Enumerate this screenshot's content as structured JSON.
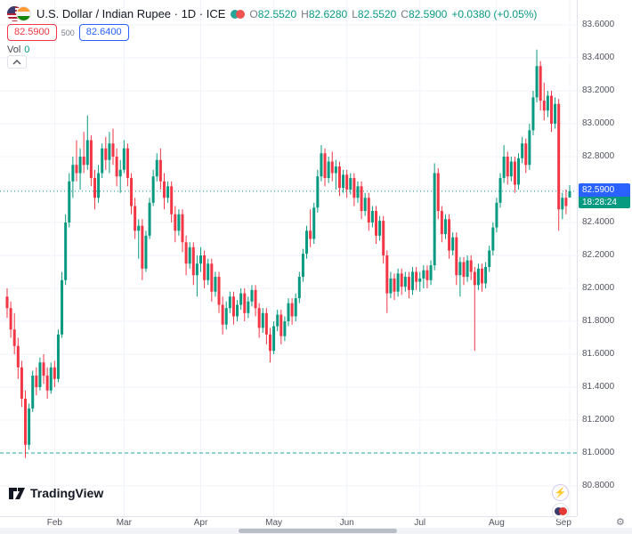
{
  "header": {
    "symbol_title": "U.S. Dollar / Indian Rupee · 1D · ICE",
    "ohlc": {
      "o_label": "O",
      "o": "82.5520",
      "h_label": "H",
      "h": "82.6280",
      "l_label": "L",
      "l": "82.5520",
      "c_label": "C",
      "c": "82.5900",
      "change": "+0.0380 (+0.05%)"
    },
    "sell_price": "82.5900",
    "spread": "500",
    "buy_price": "82.6400",
    "vol_label": "Vol",
    "vol_value": "0"
  },
  "price_label": {
    "price": "82.5900",
    "countdown": "18:28:24"
  },
  "footer": {
    "logo_text": "TradingView"
  },
  "icons": {
    "collapse": "chevron-up",
    "boost": "⚡",
    "settings": "⚙"
  },
  "colors": {
    "up": "#089981",
    "down": "#f23645",
    "grid": "#f0f3fa",
    "accent_blue": "#2962ff",
    "sell_red": "#f23645",
    "countdown_teal": "#089981",
    "axis_text": "#50535e"
  },
  "chart_data": {
    "type": "candlestick",
    "title": "U.S. Dollar / Indian Rupee",
    "interval": "1D",
    "exchange": "ICE",
    "last_price": 82.59,
    "change": 0.038,
    "change_pct": "+0.05%",
    "ylim": [
      80.7,
      83.65
    ],
    "grid": true,
    "up_color": "#089981",
    "down_color": "#f23645",
    "y_ticks": [
      "83.6000",
      "83.4000",
      "83.2000",
      "83.0000",
      "82.8000",
      "82.6000",
      "82.4000",
      "82.2000",
      "82.0000",
      "81.8000",
      "81.6000",
      "81.4000",
      "81.2000",
      "81.0000",
      "80.8000"
    ],
    "x_ticks": [
      {
        "label": "Feb",
        "index": 13
      },
      {
        "label": "Mar",
        "index": 32
      },
      {
        "label": "Apr",
        "index": 53
      },
      {
        "label": "May",
        "index": 73
      },
      {
        "label": "Jun",
        "index": 93
      },
      {
        "label": "Jul",
        "index": 113
      },
      {
        "label": "Aug",
        "index": 134
      },
      {
        "label": "Sep",
        "index": 154
      }
    ],
    "levels": [
      {
        "value": 82.59,
        "style": "dotted",
        "color": "#089981"
      },
      {
        "value": 81.0,
        "style": "dashed",
        "color": "#26a69a"
      }
    ],
    "candles": [
      [
        81.95,
        82.0,
        81.82,
        81.88
      ],
      [
        81.88,
        81.92,
        81.7,
        81.75
      ],
      [
        81.75,
        81.85,
        81.6,
        81.65
      ],
      [
        81.65,
        81.7,
        81.45,
        81.52
      ],
      [
        81.52,
        81.56,
        81.28,
        81.33
      ],
      [
        81.33,
        81.38,
        80.97,
        81.05
      ],
      [
        81.05,
        81.3,
        81.02,
        81.27
      ],
      [
        81.27,
        81.5,
        81.25,
        81.47
      ],
      [
        81.47,
        81.52,
        81.35,
        81.4
      ],
      [
        81.4,
        81.58,
        81.38,
        81.55
      ],
      [
        81.55,
        81.6,
        81.42,
        81.47
      ],
      [
        81.47,
        81.52,
        81.33,
        81.38
      ],
      [
        81.38,
        81.55,
        81.36,
        81.52
      ],
      [
        81.52,
        81.56,
        81.4,
        81.45
      ],
      [
        81.45,
        81.75,
        81.43,
        81.72
      ],
      [
        81.72,
        82.1,
        81.7,
        82.05
      ],
      [
        82.05,
        82.45,
        82.02,
        82.4
      ],
      [
        82.4,
        82.7,
        82.37,
        82.65
      ],
      [
        82.65,
        82.8,
        82.55,
        82.75
      ],
      [
        82.75,
        82.9,
        82.65,
        82.7
      ],
      [
        82.7,
        82.85,
        82.6,
        82.8
      ],
      [
        82.8,
        82.95,
        82.7,
        82.75
      ],
      [
        82.75,
        83.05,
        82.72,
        82.9
      ],
      [
        82.9,
        82.93,
        82.62,
        82.67
      ],
      [
        82.67,
        82.72,
        82.48,
        82.55
      ],
      [
        82.55,
        82.75,
        82.52,
        82.7
      ],
      [
        82.7,
        82.88,
        82.67,
        82.85
      ],
      [
        82.85,
        82.92,
        82.72,
        82.78
      ],
      [
        82.78,
        82.95,
        82.7,
        82.88
      ],
      [
        82.88,
        82.97,
        82.75,
        82.8
      ],
      [
        82.8,
        82.85,
        82.62,
        82.68
      ],
      [
        82.68,
        82.78,
        82.58,
        82.72
      ],
      [
        82.72,
        82.9,
        82.7,
        82.85
      ],
      [
        82.85,
        82.88,
        82.62,
        82.67
      ],
      [
        82.67,
        82.7,
        82.45,
        82.5
      ],
      [
        82.5,
        82.55,
        82.3,
        82.35
      ],
      [
        82.35,
        82.42,
        82.18,
        82.38
      ],
      [
        82.38,
        82.42,
        82.05,
        82.12
      ],
      [
        82.12,
        82.35,
        82.1,
        82.32
      ],
      [
        82.32,
        82.55,
        82.3,
        82.52
      ],
      [
        82.52,
        82.72,
        82.5,
        82.68
      ],
      [
        82.68,
        82.82,
        82.65,
        82.78
      ],
      [
        82.78,
        82.85,
        82.6,
        82.65
      ],
      [
        82.65,
        82.7,
        82.48,
        82.55
      ],
      [
        82.55,
        82.65,
        82.52,
        82.62
      ],
      [
        82.62,
        82.65,
        82.4,
        82.45
      ],
      [
        82.45,
        82.5,
        82.28,
        82.35
      ],
      [
        82.35,
        82.48,
        82.32,
        82.45
      ],
      [
        82.45,
        82.48,
        82.22,
        82.28
      ],
      [
        82.28,
        82.32,
        82.08,
        82.15
      ],
      [
        82.15,
        82.28,
        82.12,
        82.25
      ],
      [
        82.25,
        82.28,
        82.02,
        82.08
      ],
      [
        82.08,
        82.2,
        81.95,
        82.15
      ],
      [
        82.15,
        82.25,
        82.1,
        82.2
      ],
      [
        82.2,
        82.23,
        82.0,
        82.05
      ],
      [
        82.05,
        82.18,
        82.02,
        82.15
      ],
      [
        82.15,
        82.18,
        81.92,
        81.98
      ],
      [
        81.98,
        82.1,
        81.95,
        82.07
      ],
      [
        82.07,
        82.1,
        81.85,
        81.9
      ],
      [
        81.9,
        81.95,
        81.72,
        81.78
      ],
      [
        81.78,
        81.92,
        81.75,
        81.88
      ],
      [
        81.88,
        81.98,
        81.85,
        81.95
      ],
      [
        81.95,
        81.98,
        81.78,
        81.83
      ],
      [
        81.83,
        81.93,
        81.8,
        81.9
      ],
      [
        81.9,
        82.0,
        81.87,
        81.97
      ],
      [
        81.97,
        82.0,
        81.8,
        81.85
      ],
      [
        81.85,
        81.95,
        81.82,
        81.92
      ],
      [
        81.92,
        82.02,
        81.89,
        81.99
      ],
      [
        81.99,
        82.02,
        81.83,
        81.88
      ],
      [
        81.88,
        81.91,
        81.7,
        81.76
      ],
      [
        81.76,
        81.88,
        81.73,
        81.85
      ],
      [
        81.85,
        81.88,
        81.66,
        81.72
      ],
      [
        81.72,
        81.76,
        81.55,
        81.62
      ],
      [
        81.62,
        81.8,
        81.6,
        81.77
      ],
      [
        81.77,
        81.87,
        81.74,
        81.84
      ],
      [
        81.84,
        81.87,
        81.66,
        81.71
      ],
      [
        81.71,
        81.83,
        81.68,
        81.8
      ],
      [
        81.8,
        81.94,
        81.77,
        81.91
      ],
      [
        81.91,
        81.94,
        81.78,
        81.83
      ],
      [
        81.83,
        81.97,
        81.8,
        81.94
      ],
      [
        81.94,
        82.1,
        81.91,
        82.07
      ],
      [
        82.07,
        82.24,
        82.04,
        82.21
      ],
      [
        82.21,
        82.38,
        82.18,
        82.35
      ],
      [
        82.35,
        82.48,
        82.25,
        82.3
      ],
      [
        82.3,
        82.52,
        82.27,
        82.49
      ],
      [
        82.49,
        82.72,
        82.46,
        82.68
      ],
      [
        82.68,
        82.87,
        82.65,
        82.82
      ],
      [
        82.82,
        82.85,
        82.62,
        82.67
      ],
      [
        82.67,
        82.8,
        82.64,
        82.77
      ],
      [
        82.77,
        82.83,
        82.65,
        82.7
      ],
      [
        82.7,
        82.78,
        82.6,
        82.74
      ],
      [
        82.74,
        82.77,
        82.56,
        82.61
      ],
      [
        82.61,
        82.72,
        82.58,
        82.69
      ],
      [
        82.69,
        82.72,
        82.55,
        82.6
      ],
      [
        82.6,
        82.7,
        82.57,
        82.67
      ],
      [
        82.67,
        82.7,
        82.5,
        82.55
      ],
      [
        82.55,
        82.65,
        82.52,
        82.62
      ],
      [
        82.62,
        82.65,
        82.42,
        82.47
      ],
      [
        82.47,
        82.58,
        82.44,
        82.55
      ],
      [
        82.55,
        82.58,
        82.35,
        82.4
      ],
      [
        82.4,
        82.5,
        82.37,
        82.47
      ],
      [
        82.47,
        82.5,
        82.27,
        82.32
      ],
      [
        82.32,
        82.44,
        82.29,
        82.41
      ],
      [
        82.41,
        82.44,
        82.15,
        82.2
      ],
      [
        82.2,
        82.23,
        81.85,
        81.97
      ],
      [
        81.97,
        82.1,
        81.94,
        82.06
      ],
      [
        82.06,
        82.09,
        81.93,
        81.98
      ],
      [
        81.98,
        82.12,
        81.95,
        82.09
      ],
      [
        82.09,
        82.12,
        81.96,
        82.01
      ],
      [
        82.01,
        82.1,
        81.98,
        82.07
      ],
      [
        82.07,
        82.1,
        81.94,
        81.99
      ],
      [
        81.99,
        82.13,
        81.96,
        82.1
      ],
      [
        82.1,
        82.13,
        81.99,
        82.04
      ],
      [
        82.04,
        82.1,
        81.98,
        82.06
      ],
      [
        82.06,
        82.14,
        82.0,
        82.11
      ],
      [
        82.11,
        82.14,
        82.0,
        82.05
      ],
      [
        82.05,
        82.17,
        82.02,
        82.14
      ],
      [
        82.14,
        82.76,
        82.11,
        82.7
      ],
      [
        82.7,
        82.73,
        82.42,
        82.47
      ],
      [
        82.47,
        82.5,
        82.28,
        82.33
      ],
      [
        82.33,
        82.45,
        82.3,
        82.42
      ],
      [
        82.42,
        82.45,
        82.18,
        82.23
      ],
      [
        82.23,
        82.34,
        82.2,
        82.31
      ],
      [
        82.31,
        82.34,
        82.02,
        82.08
      ],
      [
        82.08,
        82.19,
        81.95,
        82.16
      ],
      [
        82.16,
        82.19,
        82.02,
        82.07
      ],
      [
        82.07,
        82.2,
        82.04,
        82.17
      ],
      [
        82.17,
        82.2,
        82.05,
        82.1
      ],
      [
        82.1,
        82.13,
        81.62,
        82.02
      ],
      [
        82.02,
        82.15,
        81.99,
        82.12
      ],
      [
        82.12,
        82.15,
        81.98,
        82.03
      ],
      [
        82.03,
        82.16,
        82.0,
        82.13
      ],
      [
        82.13,
        82.26,
        82.1,
        82.23
      ],
      [
        82.23,
        82.4,
        82.2,
        82.37
      ],
      [
        82.37,
        82.55,
        82.34,
        82.52
      ],
      [
        82.52,
        82.7,
        82.49,
        82.67
      ],
      [
        82.67,
        82.87,
        82.64,
        82.8
      ],
      [
        82.8,
        82.83,
        82.63,
        82.68
      ],
      [
        82.68,
        82.8,
        82.65,
        82.77
      ],
      [
        82.77,
        82.8,
        82.58,
        82.63
      ],
      [
        82.63,
        82.82,
        82.6,
        82.79
      ],
      [
        82.79,
        82.92,
        82.76,
        82.88
      ],
      [
        82.88,
        82.91,
        82.7,
        82.75
      ],
      [
        82.75,
        83.0,
        82.72,
        82.96
      ],
      [
        82.96,
        83.2,
        82.93,
        83.16
      ],
      [
        83.16,
        83.45,
        83.13,
        83.35
      ],
      [
        83.35,
        83.38,
        83.08,
        83.14
      ],
      [
        83.14,
        83.25,
        83.02,
        83.08
      ],
      [
        83.08,
        83.2,
        83.04,
        83.17
      ],
      [
        83.17,
        83.2,
        82.95,
        83.0
      ],
      [
        83.0,
        83.16,
        82.97,
        83.12
      ],
      [
        83.12,
        83.15,
        82.35,
        82.48
      ],
      [
        82.48,
        82.58,
        82.42,
        82.55
      ],
      [
        82.55,
        82.6,
        82.45,
        82.5
      ],
      [
        82.552,
        82.628,
        82.552,
        82.59
      ]
    ]
  }
}
